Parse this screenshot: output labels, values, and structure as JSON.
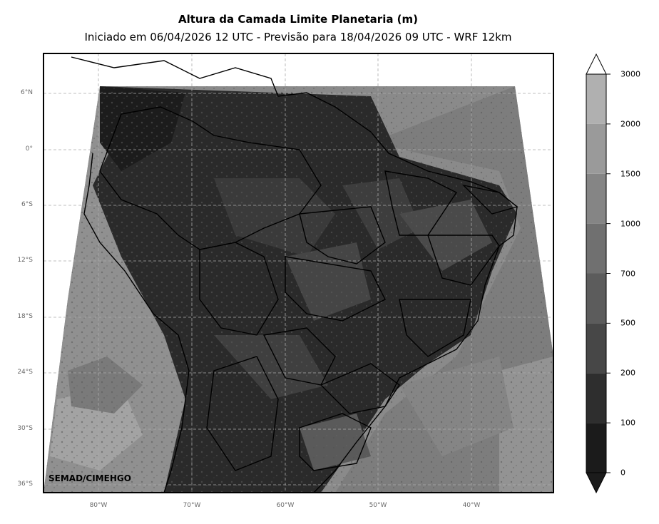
{
  "header": {
    "title": "Altura da Camada Limite Planetaria (m)",
    "subtitle": "Iniciado em 06/04/2026 12 UTC - Previsão para 18/04/2026 09 UTC - WRF 12km"
  },
  "map": {
    "region": "South America (Brazil and neighbours)",
    "lat_ticks": [
      "6°N",
      "0°",
      "6°S",
      "12°S",
      "18°S",
      "24°S",
      "30°S",
      "36°S"
    ],
    "lon_ticks": [
      "80°W",
      "70°W",
      "60°W",
      "50°W",
      "40°W"
    ],
    "credit": "SEMAD/CIMEHGO"
  },
  "colorbar": {
    "levels": [
      "0",
      "100",
      "200",
      "500",
      "700",
      "1000",
      "1500",
      "2000",
      "3000"
    ],
    "colors": [
      "#1b1b1b",
      "#2e2e2e",
      "#474747",
      "#5c5c5c",
      "#707070",
      "#858585",
      "#9a9a9a",
      "#b0b0b0",
      "#e6e6e6"
    ],
    "extend": "both"
  }
}
